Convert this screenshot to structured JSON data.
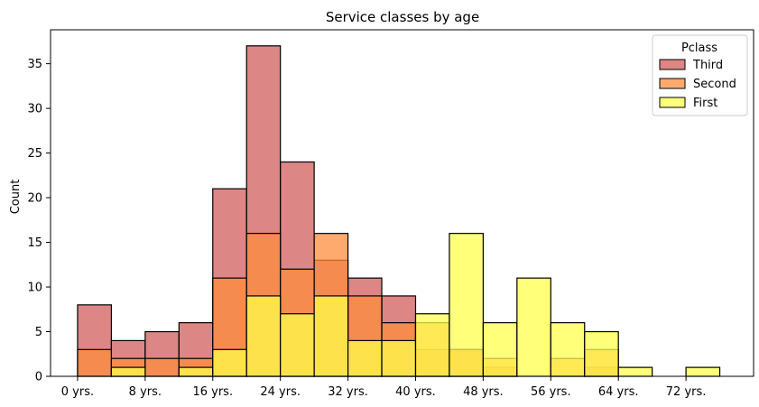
{
  "chart_data": {
    "type": "histogram",
    "title": "Service classes by age",
    "xlabel": "",
    "ylabel": "Count",
    "bin_width": 4,
    "bin_starts": [
      0,
      4,
      8,
      12,
      16,
      20,
      24,
      28,
      32,
      36,
      40,
      44,
      48,
      52,
      56,
      60,
      64,
      68,
      72
    ],
    "xticks": [
      {
        "value": 0,
        "label": "0 yrs."
      },
      {
        "value": 8,
        "label": "8 yrs."
      },
      {
        "value": 16,
        "label": "16 yrs."
      },
      {
        "value": 24,
        "label": "24 yrs."
      },
      {
        "value": 32,
        "label": "32 yrs."
      },
      {
        "value": 40,
        "label": "40 yrs."
      },
      {
        "value": 48,
        "label": "48 yrs."
      },
      {
        "value": 56,
        "label": "56 yrs."
      },
      {
        "value": 64,
        "label": "64 yrs."
      },
      {
        "value": 72,
        "label": "72 yrs."
      }
    ],
    "yticks": [
      0,
      5,
      10,
      15,
      20,
      25,
      30,
      35
    ],
    "xlim": [
      -3.2,
      80
    ],
    "ylim": [
      0,
      38.8
    ],
    "grid": false,
    "legend": {
      "title": "Pclass",
      "placement": "top-right"
    },
    "series": [
      {
        "name": "Third",
        "color": "#d05e5c",
        "opacity": 0.75,
        "values": [
          8,
          4,
          5,
          6,
          21,
          37,
          24,
          13,
          11,
          9,
          3,
          3,
          1,
          0,
          0,
          1,
          0,
          0,
          0
        ]
      },
      {
        "name": "Second",
        "color": "#fd8c3c",
        "opacity": 0.75,
        "values": [
          3,
          2,
          2,
          2,
          11,
          16,
          12,
          16,
          9,
          6,
          6,
          3,
          2,
          0,
          2,
          3,
          0,
          0,
          0
        ]
      },
      {
        "name": "First",
        "color": "#ffff4c",
        "opacity": 0.75,
        "values": [
          0,
          1,
          0,
          1,
          3,
          9,
          7,
          9,
          4,
          4,
          7,
          16,
          6,
          11,
          6,
          5,
          1,
          0,
          1
        ]
      }
    ]
  }
}
